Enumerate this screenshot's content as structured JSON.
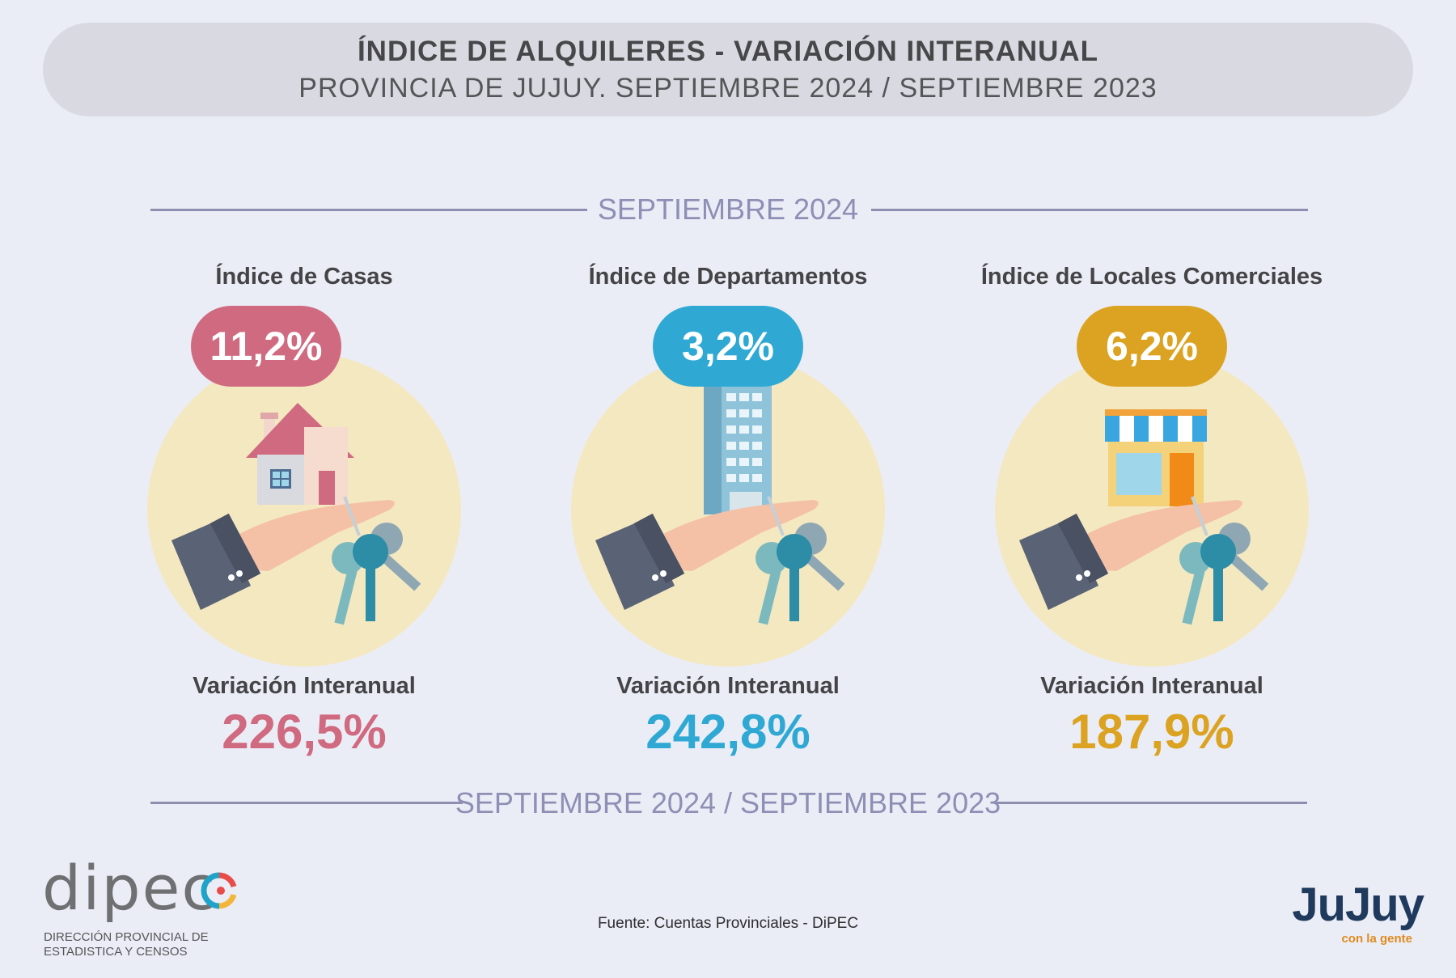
{
  "header": {
    "title": "ÍNDICE DE ALQUILERES - VARIACIÓN INTERANUAL",
    "subtitle": "PROVINCIA DE JUJUY. SEPTIEMBRE 2024 / SEPTIEMBRE 2023"
  },
  "section_top_label": "SEPTIEMBRE 2024",
  "section_bottom_label": "SEPTIEMBRE 2024 / SEPTIEMBRE 2023",
  "cards": [
    {
      "title": "Índice de Casas",
      "monthly": "11,2%",
      "variation_label": "Variación Interanual",
      "variation": "226,5%",
      "color": "#d06a80",
      "icon": "house-icon"
    },
    {
      "title": "Índice de Departamentos",
      "monthly": "3,2%",
      "variation_label": "Variación Interanual",
      "variation": "242,8%",
      "color": "#2fa9d4",
      "icon": "building-icon"
    },
    {
      "title": "Índice de Locales Comerciales",
      "monthly": "6,2%",
      "variation_label": "Variación Interanual",
      "variation": "187,9%",
      "color": "#dba321",
      "icon": "store-icon"
    }
  ],
  "source": "Fuente: Cuentas Provinciales - DiPEC",
  "dipec_logo": {
    "word": "dipec",
    "line1": "DIRECCIÓN PROVINCIAL DE",
    "line2": "ESTADISTICA Y CENSOS"
  },
  "jujuy_logo": {
    "word": "JuJuy",
    "tagline": "con la gente"
  }
}
